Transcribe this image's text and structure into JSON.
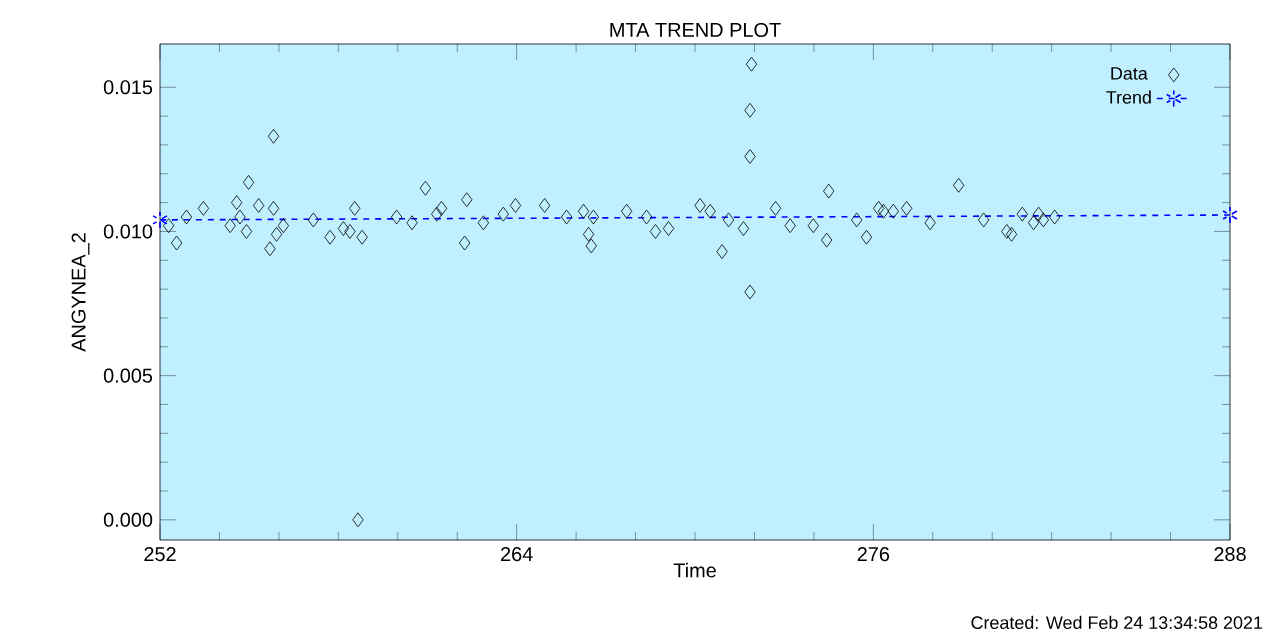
{
  "chart_data": {
    "type": "scatter",
    "title": "MTA TREND PLOT",
    "xlabel": "Time",
    "ylabel": "ANGYNEA_2",
    "xlim": [
      252,
      288
    ],
    "xticks": [
      252,
      264,
      276,
      288
    ],
    "ylim": [
      -0.0007,
      0.0165
    ],
    "yticks": [
      {
        "value": 0,
        "label": "0.000"
      },
      {
        "value": 0.005,
        "label": "0.005"
      },
      {
        "value": 0.01,
        "label": "0.010"
      },
      {
        "value": 0.015,
        "label": "0.015"
      }
    ],
    "legend": "top right",
    "grid": false,
    "annotations": [
      "Created: Wed Feb 24 13:34:58 2021"
    ],
    "series": [
      {
        "name": "Data",
        "marker": "diamond",
        "color": "#000000",
        "x": [
          252.29,
          252.56,
          252.89,
          253.46,
          254.36,
          254.58,
          254.69,
          254.91,
          254.98,
          255.32,
          255.7,
          255.82,
          255.82,
          255.92,
          256.15,
          257.16,
          257.72,
          258.17,
          258.39,
          258.55,
          258.8,
          258.66,
          259.96,
          260.48,
          260.93,
          261.31,
          261.47,
          262.32,
          262.25,
          262.88,
          263.55,
          263.96,
          264.94,
          265.68,
          266.25,
          266.58,
          266.42,
          266.51,
          267.7,
          268.37,
          268.67,
          269.11,
          270.17,
          270.51,
          270.91,
          271.13,
          271.63,
          271.9,
          271.85,
          271.85,
          271.85,
          272.71,
          273.2,
          273.98,
          274.5,
          274.43,
          275.44,
          275.77,
          276.18,
          276.34,
          276.67,
          277.12,
          277.91,
          278.87,
          279.71,
          280.49,
          280.65,
          281.01,
          281.39,
          281.56,
          281.72,
          282.1
        ],
        "values": [
          0.0102,
          0.0096,
          0.0105,
          0.0108,
          0.0102,
          0.011,
          0.0105,
          0.01,
          0.0117,
          0.0109,
          0.0094,
          0.0108,
          0.0133,
          0.0099,
          0.0102,
          0.0104,
          0.0098,
          0.0101,
          0.01,
          0.0108,
          0.0098,
          0.0,
          0.0105,
          0.0103,
          0.0115,
          0.0106,
          0.0108,
          0.0111,
          0.0096,
          0.0103,
          0.0106,
          0.0109,
          0.0109,
          0.0105,
          0.0107,
          0.0105,
          0.0099,
          0.0095,
          0.0107,
          0.0105,
          0.01,
          0.0101,
          0.0109,
          0.0107,
          0.0093,
          0.0104,
          0.0101,
          0.0158,
          0.0142,
          0.0126,
          0.0079,
          0.0108,
          0.0102,
          0.0102,
          0.0114,
          0.0097,
          0.0104,
          0.0098,
          0.0108,
          0.0107,
          0.0107,
          0.0108,
          0.0103,
          0.0116,
          0.0104,
          0.01,
          0.0099,
          0.0106,
          0.0103,
          0.0106,
          0.0104,
          0.0105
        ]
      },
      {
        "name": "Trend",
        "type": "line",
        "marker": "cross",
        "line_style": "dashed",
        "color": "#0000ff",
        "x": [
          252,
          288
        ],
        "values": [
          0.0104,
          0.01057
        ]
      }
    ]
  }
}
